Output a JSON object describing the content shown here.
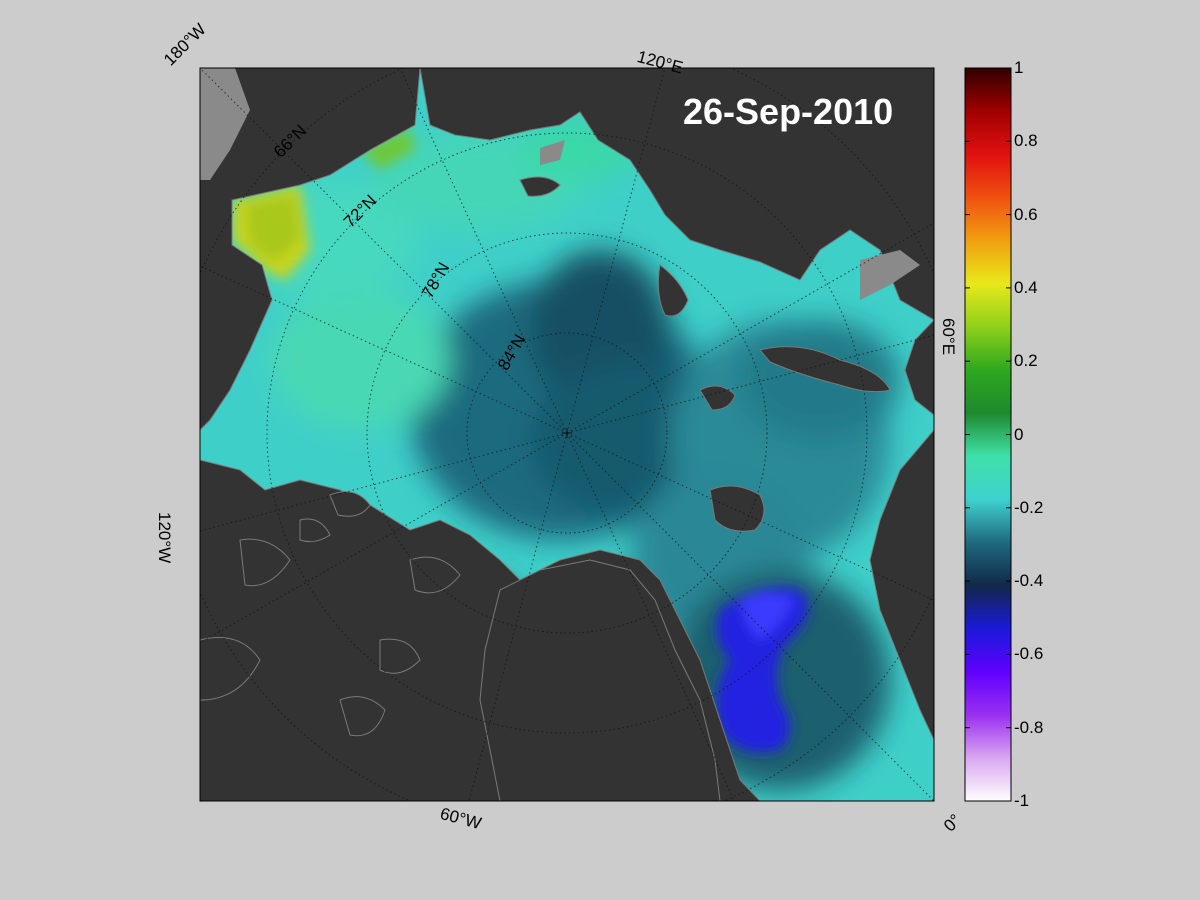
{
  "map": {
    "date": "26-Sep-2010",
    "labels": {
      "lon_180w": "180°W",
      "lon_120e": "120°E",
      "lon_60e": "60°E",
      "lon_0": "0°",
      "lon_60w": "60°W",
      "lon_120w": "120°W",
      "lat_66n": "66°N",
      "lat_72n": "72°N",
      "lat_78n": "78°N",
      "lat_84n": "84°N"
    },
    "colors": {
      "page_bg": "#cccccc",
      "land": "#333333",
      "coast_outline": "#888888",
      "ocean_base": "#3fcfc9"
    }
  },
  "colorbar": {
    "min": -1,
    "max": 1,
    "ticks": [
      "1",
      "0.8",
      "0.6",
      "0.4",
      "0.2",
      "0",
      "-0.2",
      "-0.4",
      "-0.6",
      "-0.8",
      "-1"
    ],
    "colors": [
      "#fefefe",
      "#d9a6f0",
      "#9a2ff0",
      "#5f00ff",
      "#1a1ad8",
      "#12284a",
      "#1f6a7e",
      "#3ed2cf",
      "#3fe0a8",
      "#1e8a2e",
      "#2fa81e",
      "#8fd11a",
      "#e8e81a",
      "#f0a010",
      "#f05010",
      "#e01010",
      "#a00000",
      "#300000"
    ]
  }
}
